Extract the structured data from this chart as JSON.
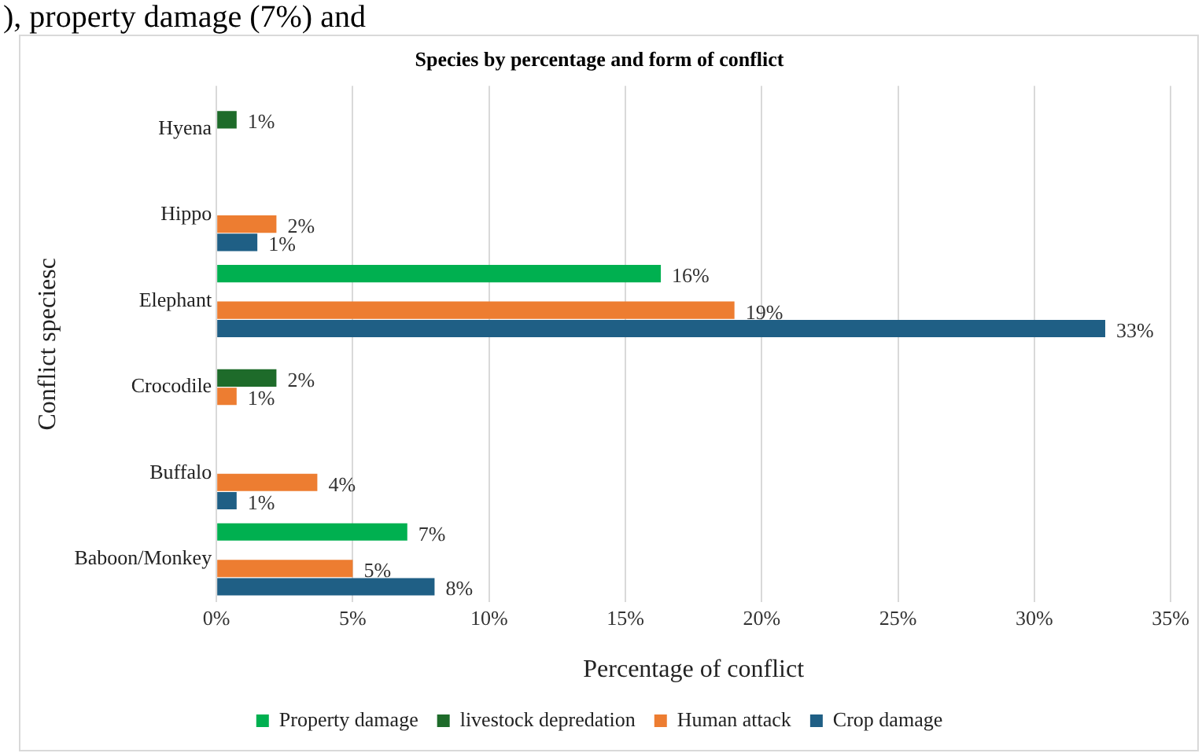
{
  "chart_data": {
    "type": "bar",
    "orientation": "horizontal",
    "title": "Species by percentage and form of conflict",
    "xlabel": "Percentage of conflict",
    "ylabel": "Conflict speciesc",
    "annotations": [
      "), property damage (7%) and"
    ],
    "categories": [
      "Hyena",
      "Hippo",
      "Elephant",
      "Crocodile",
      "Buffalo",
      "Baboon/Monkey"
    ],
    "series": [
      {
        "name": "Property damage",
        "color": "#00b050",
        "values": [
          null,
          null,
          16.3,
          null,
          null,
          7.0
        ],
        "value_labels": [
          null,
          null,
          "16%",
          null,
          null,
          "7%"
        ]
      },
      {
        "name": "livestock depredation",
        "color": "#1e6b2a",
        "values": [
          0.74,
          null,
          null,
          2.2,
          null,
          null
        ],
        "value_labels": [
          "1%",
          null,
          null,
          "2%",
          null,
          null
        ]
      },
      {
        "name": "Human attack",
        "color": "#ed7d31",
        "values": [
          null,
          2.2,
          19.0,
          0.74,
          3.7,
          5.0
        ],
        "value_labels": [
          null,
          "2%",
          "19%",
          "1%",
          "4%",
          "5%"
        ]
      },
      {
        "name": "Crop damage",
        "color": "#1f5f85",
        "values": [
          null,
          1.5,
          32.6,
          null,
          0.74,
          8.0
        ],
        "value_labels": [
          null,
          "1%",
          "33%",
          null,
          "1%",
          "8%"
        ]
      }
    ],
    "xlim": [
      0,
      35
    ],
    "xticks": [
      {
        "value": 0,
        "label": "0%"
      },
      {
        "value": 5,
        "label": "5%"
      },
      {
        "value": 10,
        "label": "10%"
      },
      {
        "value": 15,
        "label": "15%"
      },
      {
        "value": 20,
        "label": "20%"
      },
      {
        "value": 25,
        "label": "25%"
      },
      {
        "value": 30,
        "label": "30%"
      },
      {
        "value": 35,
        "label": "35%"
      }
    ],
    "grid": "x",
    "legend": "bottom"
  }
}
